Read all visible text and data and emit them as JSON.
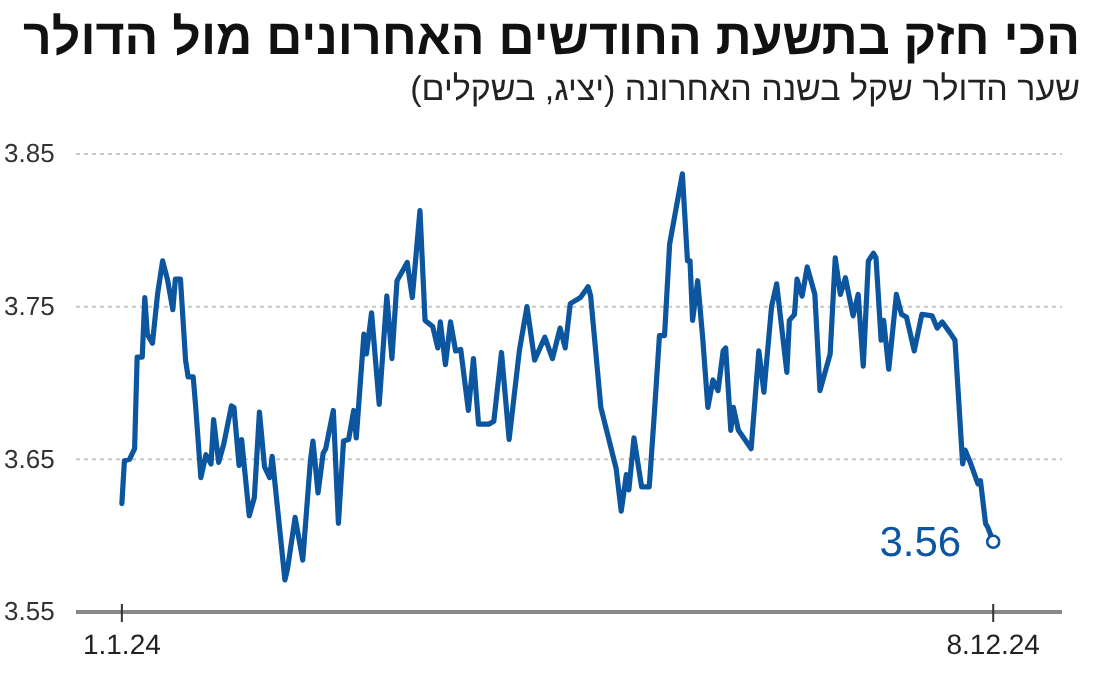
{
  "chart_data": {
    "type": "line",
    "title": "הכי חזק בתשעת החודשים האחרונים מול הדולר",
    "subtitle": "שער הדולר שקל בשנה האחרונה (יציג, בשקלים)",
    "x": [
      "2024-01-01",
      "2024-01-02",
      "2024-01-04",
      "2024-01-06",
      "2024-01-07",
      "2024-01-09",
      "2024-01-10",
      "2024-01-11",
      "2024-01-13",
      "2024-01-15",
      "2024-01-17",
      "2024-01-19",
      "2024-01-21",
      "2024-01-22",
      "2024-01-24",
      "2024-01-26",
      "2024-01-27",
      "2024-01-29",
      "2024-01-30",
      "2024-02-01",
      "2024-02-03",
      "2024-02-05",
      "2024-02-06",
      "2024-02-08",
      "2024-02-10",
      "2024-02-13",
      "2024-02-14",
      "2024-02-16",
      "2024-02-17",
      "2024-02-20",
      "2024-02-22",
      "2024-02-24",
      "2024-02-26",
      "2024-02-28",
      "2024-02-29",
      "2024-03-05",
      "2024-03-06",
      "2024-03-09",
      "2024-03-12",
      "2024-03-15",
      "2024-03-16",
      "2024-03-18",
      "2024-03-20",
      "2024-03-21",
      "2024-03-24",
      "2024-03-26",
      "2024-03-28",
      "2024-03-30",
      "2024-04-01",
      "2024-04-02",
      "2024-04-05",
      "2024-04-06",
      "2024-04-08",
      "2024-04-11",
      "2024-04-14",
      "2024-04-16",
      "2024-04-18",
      "2024-04-22",
      "2024-04-24",
      "2024-04-27",
      "2024-04-29",
      "2024-05-02",
      "2024-05-04",
      "2024-05-05",
      "2024-05-07",
      "2024-05-09",
      "2024-05-11",
      "2024-05-13",
      "2024-05-16",
      "2024-05-18",
      "2024-05-20",
      "2024-05-24",
      "2024-05-26",
      "2024-05-29",
      "2024-06-01",
      "2024-06-05",
      "2024-06-08",
      "2024-06-11",
      "2024-06-15",
      "2024-06-18",
      "2024-06-21",
      "2024-06-23",
      "2024-06-25",
      "2024-06-29",
      "2024-07-02",
      "2024-07-03",
      "2024-07-07",
      "2024-07-10",
      "2024-07-13",
      "2024-07-15",
      "2024-07-17",
      "2024-07-18",
      "2024-07-20",
      "2024-07-23",
      "2024-07-26",
      "2024-07-28",
      "2024-07-30",
      "2024-08-01",
      "2024-08-03",
      "2024-08-08",
      "2024-08-10",
      "2024-08-11",
      "2024-08-12",
      "2024-08-14",
      "2024-08-16",
      "2024-08-18",
      "2024-08-20",
      "2024-08-22",
      "2024-08-24",
      "2024-08-25",
      "2024-08-27",
      "2024-08-28",
      "2024-08-30",
      "2024-09-04",
      "2024-09-07",
      "2024-09-09",
      "2024-09-12",
      "2024-09-14",
      "2024-09-18",
      "2024-09-19",
      "2024-09-21",
      "2024-09-22",
      "2024-09-24",
      "2024-09-26",
      "2024-09-29",
      "2024-10-01",
      "2024-10-05",
      "2024-10-07",
      "2024-10-09",
      "2024-10-11",
      "2024-10-14",
      "2024-10-16",
      "2024-10-18",
      "2024-10-20",
      "2024-10-22",
      "2024-10-23",
      "2024-10-25",
      "2024-10-26",
      "2024-10-28",
      "2024-10-31",
      "2024-11-02",
      "2024-11-04",
      "2024-11-07",
      "2024-11-10",
      "2024-11-14",
      "2024-11-16",
      "2024-11-18",
      "2024-11-21",
      "2024-11-23",
      "2024-11-26",
      "2024-11-27",
      "2024-11-29",
      "2024-12-02",
      "2024-12-03",
      "2024-12-05",
      "2024-12-06",
      "2024-12-08"
    ],
    "series": [
      {
        "color": "#0c56a0",
        "values": [
          3.621,
          3.649,
          3.65,
          3.657,
          3.717,
          3.717,
          3.756,
          3.732,
          3.726,
          3.758,
          3.78,
          3.767,
          3.748,
          3.768,
          3.768,
          3.715,
          3.704,
          3.704,
          3.684,
          3.638,
          3.653,
          3.647,
          3.676,
          3.648,
          3.66,
          3.685,
          3.684,
          3.646,
          3.663,
          3.613,
          3.625,
          3.681,
          3.645,
          3.638,
          3.652,
          3.571,
          3.578,
          3.612,
          3.584,
          3.649,
          3.662,
          3.628,
          3.654,
          3.657,
          3.682,
          3.608,
          3.662,
          3.663,
          3.682,
          3.664,
          3.732,
          3.719,
          3.746,
          3.686,
          3.757,
          3.716,
          3.767,
          3.779,
          3.756,
          3.813,
          3.741,
          3.737,
          3.723,
          3.74,
          3.712,
          3.74,
          3.721,
          3.722,
          3.682,
          3.716,
          3.673,
          3.673,
          3.675,
          3.72,
          3.663,
          3.721,
          3.75,
          3.715,
          3.73,
          3.716,
          3.736,
          3.723,
          3.752,
          3.756,
          3.763,
          3.757,
          3.684,
          3.664,
          3.644,
          3.616,
          3.64,
          3.63,
          3.664,
          3.632,
          3.632,
          3.68,
          3.731,
          3.731,
          3.791,
          3.837,
          3.78,
          3.78,
          3.741,
          3.767,
          3.729,
          3.684,
          3.702,
          3.695,
          3.721,
          3.723,
          3.669,
          3.684,
          3.669,
          3.657,
          3.721,
          3.694,
          3.75,
          3.765,
          3.707,
          3.741,
          3.745,
          3.768,
          3.757,
          3.776,
          3.758,
          3.695,
          3.719,
          3.782,
          3.758,
          3.769,
          3.744,
          3.758,
          3.711,
          3.78,
          3.785,
          3.782,
          3.728,
          3.741,
          3.709,
          3.758,
          3.745,
          3.743,
          3.721,
          3.745,
          3.744,
          3.736,
          3.74,
          3.733,
          3.728,
          3.647,
          3.656,
          3.648,
          3.634,
          3.636,
          3.608,
          3.605,
          3.596
        ]
      }
    ],
    "xlim": [
      "2023-12-14",
      "2025-01-04"
    ],
    "xticks": [
      {
        "value": "2024-01-01",
        "label": "1.1.24"
      },
      {
        "value": "2024-12-08",
        "label": "8.12.24"
      }
    ],
    "ylim": [
      3.55,
      3.85
    ],
    "yticks": [
      3.55,
      3.65,
      3.75,
      3.85
    ],
    "grid": "y",
    "annotations": [
      {
        "text": "3.56",
        "x": "2024-12-08",
        "y": 3.596
      }
    ]
  }
}
